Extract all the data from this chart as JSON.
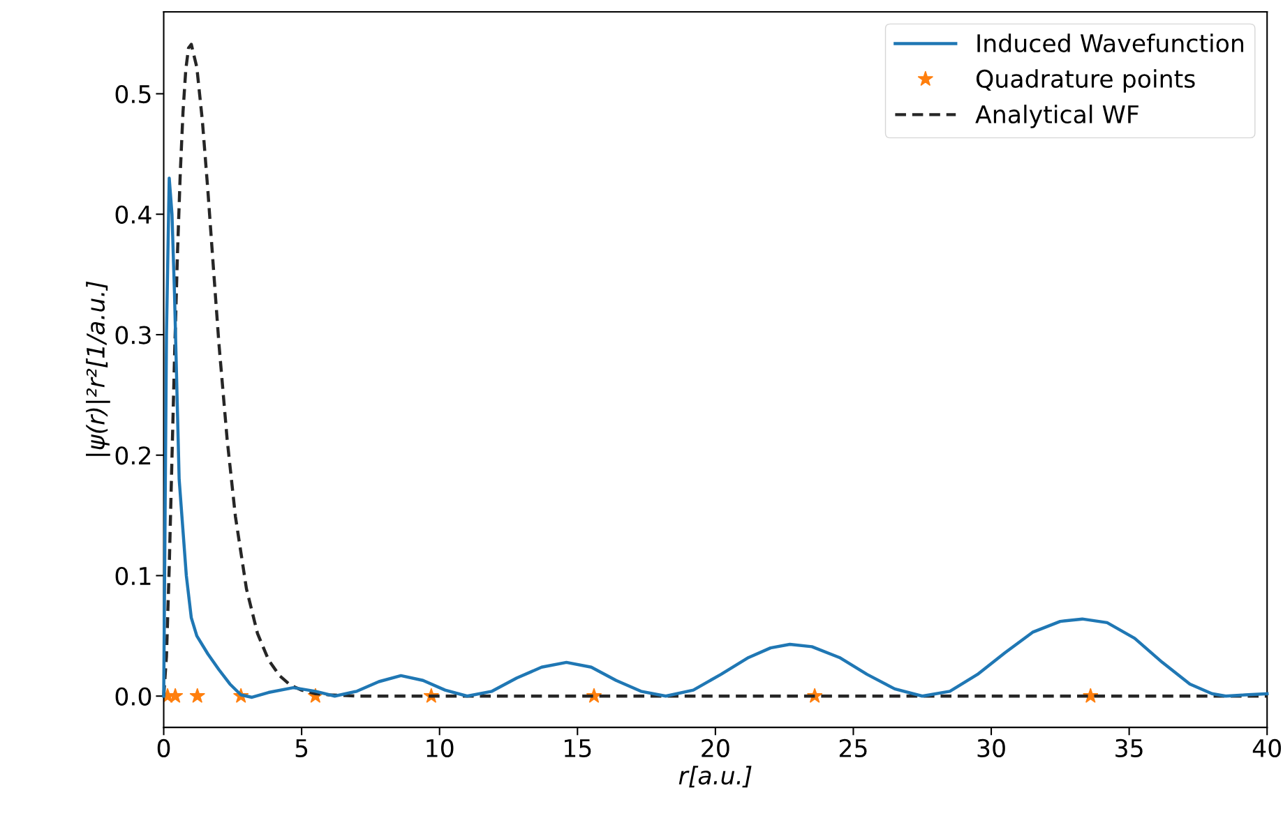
{
  "chart_data": {
    "type": "line",
    "xlabel": "r[a.u.]",
    "ylabel": "|ψ(r)|²r²[1/a.u.]",
    "xlim": [
      0,
      40
    ],
    "ylim": [
      -0.026,
      0.568
    ],
    "xticks": [
      0,
      5,
      10,
      15,
      20,
      25,
      30,
      35,
      40
    ],
    "yticks": [
      {
        "value": 0,
        "label": "0.0"
      },
      0.1,
      0.2,
      0.3,
      0.4,
      0.5
    ],
    "grid": false,
    "legend": "top right",
    "series": [
      {
        "name": "Induced Wavefunction",
        "color": "#1f77b4",
        "line_style": "solid",
        "marker": "none",
        "x": [
          0,
          0.1,
          0.2,
          0.3,
          0.39,
          0.56,
          0.82,
          1.0,
          1.2,
          1.6,
          2.0,
          2.4,
          2.8,
          3.2,
          3.8,
          4.7,
          5.5,
          6.2,
          7.0,
          7.8,
          8.6,
          9.4,
          10.2,
          11.0,
          11.9,
          12.8,
          13.7,
          14.6,
          15.5,
          16.4,
          17.3,
          18.2,
          19.2,
          20.2,
          21.2,
          22.0,
          22.7,
          23.5,
          24.5,
          25.5,
          26.5,
          27.5,
          28.5,
          29.5,
          30.5,
          31.5,
          32.5,
          33.3,
          34.2,
          35.2,
          36.2,
          37.2,
          38.0,
          38.5,
          39.2,
          40
        ],
        "values": [
          0,
          0.3,
          0.43,
          0.4,
          0.335,
          0.18,
          0.1,
          0.065,
          0.05,
          0.035,
          0.022,
          0.01,
          0.001,
          -0.001,
          0.003,
          0.007,
          0.004,
          0.0,
          0.004,
          0.012,
          0.017,
          0.013,
          0.005,
          0.0,
          0.004,
          0.015,
          0.024,
          0.028,
          0.024,
          0.013,
          0.004,
          0.0,
          0.005,
          0.018,
          0.032,
          0.04,
          0.043,
          0.041,
          0.032,
          0.018,
          0.006,
          0.0,
          0.004,
          0.018,
          0.036,
          0.053,
          0.062,
          0.064,
          0.061,
          0.048,
          0.028,
          0.01,
          0.002,
          0.0,
          0.001,
          0.002
        ]
      },
      {
        "name": "Quadrature points",
        "type": "scatter",
        "color": "#ff7f0e",
        "marker": "star",
        "x": [
          0.14,
          0.42,
          1.22,
          2.8,
          5.5,
          9.7,
          15.6,
          23.6,
          33.6
        ],
        "values": [
          0,
          0,
          0,
          0,
          0,
          0,
          0,
          0,
          0
        ]
      },
      {
        "name": "Analytical WF",
        "color": "#262626",
        "line_style": "dashed",
        "marker": "none",
        "x": [
          0,
          0.1,
          0.2,
          0.3,
          0.4,
          0.5,
          0.6,
          0.7,
          0.8,
          0.9,
          1.0,
          1.2,
          1.4,
          1.6,
          1.8,
          2.0,
          2.3,
          2.6,
          3.0,
          3.4,
          3.8,
          4.2,
          4.6,
          5.0,
          5.5,
          6.0,
          7.0,
          8.0,
          10,
          15,
          20,
          25,
          30,
          35,
          40
        ],
        "values": [
          0,
          0.033,
          0.107,
          0.198,
          0.288,
          0.368,
          0.434,
          0.485,
          0.52,
          0.538,
          0.541,
          0.522,
          0.478,
          0.42,
          0.356,
          0.293,
          0.213,
          0.149,
          0.089,
          0.052,
          0.03,
          0.017,
          0.009,
          0.005,
          0.002,
          0.001,
          0,
          0,
          0,
          0,
          0,
          0,
          0,
          0,
          0
        ]
      }
    ]
  }
}
